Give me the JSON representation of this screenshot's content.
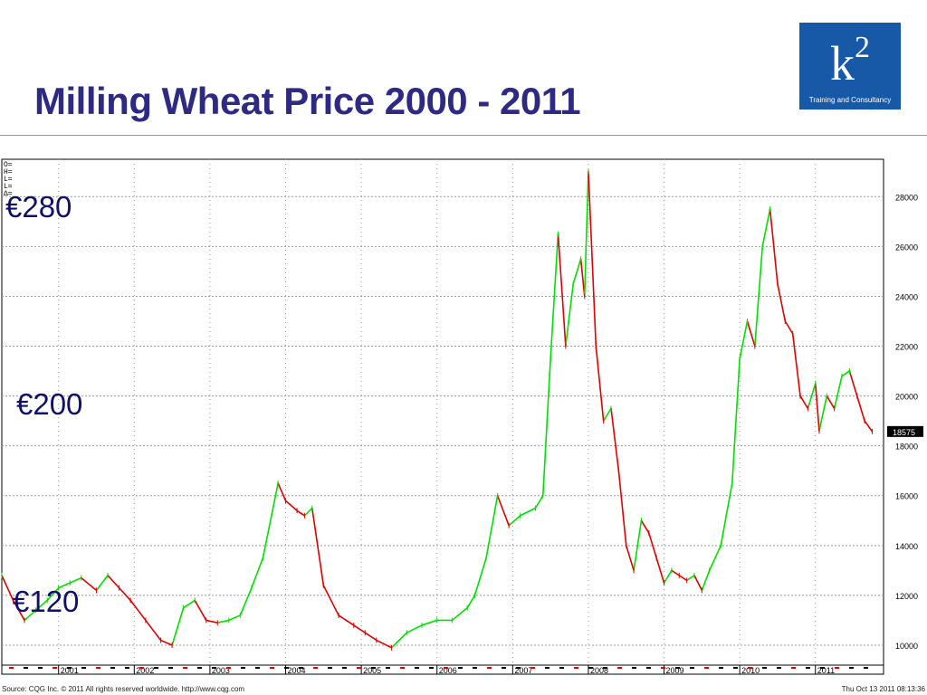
{
  "slide": {
    "title": "Milling Wheat Price 2000 - 2011",
    "logo": {
      "mark": "k",
      "superscript": "2",
      "tagline": "Training and Consultancy"
    },
    "footer_left": "Source: CQG Inc. © 2011 All rights reserved worldwide. http://www.cqg.com",
    "footer_right": "Thu Oct 13 2011 08:13:36",
    "callouts": [
      {
        "id": "c280",
        "text": "€280"
      },
      {
        "id": "c200",
        "text": "€200"
      },
      {
        "id": "c120",
        "text": "€120"
      }
    ]
  },
  "colors": {
    "title": "#2e2a83",
    "logo_bg": "#1759a6",
    "up": "#00e000",
    "down": "#e00000",
    "grid": "#9a9a9a",
    "last_price_tag": "#000000"
  },
  "chart_data": {
    "type": "line",
    "title": "",
    "xlabel": "",
    "ylabel": "",
    "x_ticks": [
      "2001",
      "2002",
      "2003",
      "2004",
      "2005",
      "2006",
      "2007",
      "2008",
      "2009",
      "2010",
      "2011"
    ],
    "y_ticks": [
      10000,
      12000,
      14000,
      16000,
      18000,
      20000,
      22000,
      24000,
      26000,
      28000
    ],
    "ylim": [
      9200,
      29500
    ],
    "xlim": [
      2000.25,
      2011.9
    ],
    "last_price": 18575,
    "grid": true,
    "legend_header": [
      "O=",
      "H=",
      "L=",
      "L=",
      "Δ="
    ],
    "series": [
      {
        "x": [
          2000.25,
          2000.4,
          2000.55,
          2000.7,
          2000.85,
          2001.0,
          2001.15,
          2001.3,
          2001.5,
          2001.65,
          2001.8,
          2001.95,
          2002.15,
          2002.35,
          2002.5,
          2002.65,
          2002.8,
          2002.95,
          2003.1,
          2003.25,
          2003.4,
          2003.55,
          2003.7,
          2003.9,
          2004.0,
          2004.15,
          2004.25,
          2004.35,
          2004.5,
          2004.7,
          2004.9,
          2005.05,
          2005.2,
          2005.4,
          2005.6,
          2005.8,
          2006.0,
          2006.2,
          2006.4,
          2006.5,
          2006.65,
          2006.8,
          2006.95,
          2007.1,
          2007.3,
          2007.4,
          2007.5,
          2007.6,
          2007.7,
          2007.8,
          2007.9,
          2007.95,
          2008.0,
          2008.1,
          2008.2,
          2008.3,
          2008.4,
          2008.5,
          2008.6,
          2008.7,
          2008.8,
          2008.9,
          2009.0,
          2009.1,
          2009.2,
          2009.3,
          2009.4,
          2009.5,
          2009.6,
          2009.75,
          2009.9,
          2010.0,
          2010.1,
          2010.2,
          2010.3,
          2010.4,
          2010.5,
          2010.6,
          2010.7,
          2010.8,
          2010.9,
          2011.0,
          2011.05,
          2011.15,
          2011.25,
          2011.35,
          2011.45,
          2011.55,
          2011.65,
          2011.75
        ],
        "values": [
          12800,
          11800,
          11000,
          11400,
          11800,
          12300,
          12500,
          12700,
          12200,
          12800,
          12300,
          11800,
          11000,
          10200,
          10000,
          11500,
          11800,
          11000,
          10900,
          11000,
          11200,
          12300,
          13500,
          16500,
          15800,
          15400,
          15200,
          15500,
          12400,
          11200,
          10800,
          10500,
          10200,
          9900,
          10500,
          10800,
          11000,
          11000,
          11500,
          12000,
          13500,
          16000,
          14800,
          15200,
          15500,
          16000,
          21500,
          26500,
          22000,
          24500,
          25500,
          24000,
          29000,
          22000,
          19000,
          19500,
          17000,
          14000,
          13000,
          15000,
          14500,
          13500,
          12500,
          13000,
          12800,
          12600,
          12800,
          12200,
          13000,
          14000,
          16500,
          21500,
          23000,
          22000,
          26000,
          27500,
          24500,
          23000,
          22500,
          20000,
          19500,
          20500,
          18600,
          20000,
          19500,
          20800,
          21000,
          20000,
          19000,
          18575
        ]
      }
    ]
  }
}
